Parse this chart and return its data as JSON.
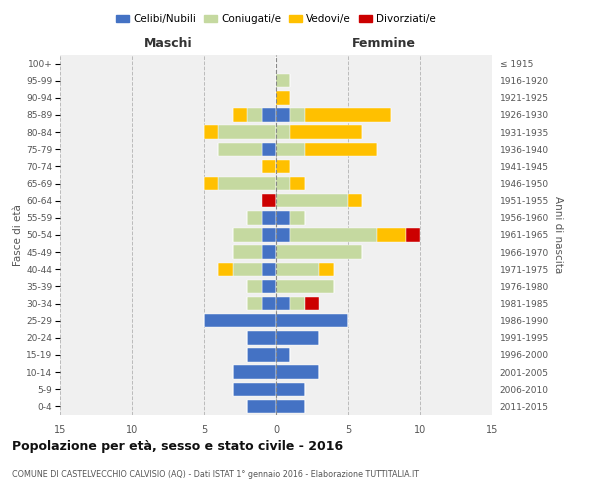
{
  "age_groups": [
    "0-4",
    "5-9",
    "10-14",
    "15-19",
    "20-24",
    "25-29",
    "30-34",
    "35-39",
    "40-44",
    "45-49",
    "50-54",
    "55-59",
    "60-64",
    "65-69",
    "70-74",
    "75-79",
    "80-84",
    "85-89",
    "90-94",
    "95-99",
    "100+"
  ],
  "birth_years": [
    "2011-2015",
    "2006-2010",
    "2001-2005",
    "1996-2000",
    "1991-1995",
    "1986-1990",
    "1981-1985",
    "1976-1980",
    "1971-1975",
    "1966-1970",
    "1961-1965",
    "1956-1960",
    "1951-1955",
    "1946-1950",
    "1941-1945",
    "1936-1940",
    "1931-1935",
    "1926-1930",
    "1921-1925",
    "1916-1920",
    "≤ 1915"
  ],
  "males": {
    "celibi": [
      2,
      3,
      3,
      2,
      2,
      5,
      1,
      1,
      1,
      1,
      1,
      1,
      0,
      0,
      0,
      1,
      0,
      1,
      0,
      0,
      0
    ],
    "coniugati": [
      0,
      0,
      0,
      0,
      0,
      0,
      1,
      1,
      2,
      2,
      2,
      1,
      0,
      4,
      0,
      3,
      4,
      1,
      0,
      0,
      0
    ],
    "vedovi": [
      0,
      0,
      0,
      0,
      0,
      0,
      0,
      0,
      1,
      0,
      0,
      0,
      0,
      1,
      1,
      0,
      1,
      1,
      0,
      0,
      0
    ],
    "divorziati": [
      0,
      0,
      0,
      0,
      0,
      0,
      0,
      0,
      0,
      0,
      0,
      0,
      1,
      0,
      0,
      0,
      0,
      0,
      0,
      0,
      0
    ]
  },
  "females": {
    "nubili": [
      2,
      2,
      3,
      1,
      3,
      5,
      1,
      0,
      0,
      0,
      1,
      1,
      0,
      0,
      0,
      0,
      0,
      1,
      0,
      0,
      0
    ],
    "coniugate": [
      0,
      0,
      0,
      0,
      0,
      0,
      1,
      4,
      3,
      6,
      6,
      1,
      5,
      1,
      0,
      2,
      1,
      1,
      0,
      1,
      0
    ],
    "vedove": [
      0,
      0,
      0,
      0,
      0,
      0,
      0,
      0,
      1,
      0,
      2,
      0,
      1,
      1,
      1,
      5,
      5,
      6,
      1,
      0,
      0
    ],
    "divorziate": [
      0,
      0,
      0,
      0,
      0,
      0,
      1,
      0,
      0,
      0,
      1,
      0,
      0,
      0,
      0,
      0,
      0,
      0,
      0,
      0,
      0
    ]
  },
  "color_celibi": "#4472c4",
  "color_coniugati": "#c5d9a0",
  "color_vedovi": "#ffc000",
  "color_divorziati": "#cc0000",
  "title_bold": "Popolazione per età, sesso e stato civile - 2016",
  "subtitle": "COMUNE DI CASTELVECCHIO CALVISIO (AQ) - Dati ISTAT 1° gennaio 2016 - Elaborazione TUTTITALIA.IT",
  "xlabel_maschi": "Maschi",
  "xlabel_femmine": "Femmine",
  "ylabel_left": "Fasce di età",
  "ylabel_right": "Anni di nascita",
  "xlim": 15,
  "legend_labels": [
    "Celibi/Nubili",
    "Coniugati/e",
    "Vedovi/e",
    "Divorziati/e"
  ],
  "bg_color": "#ffffff",
  "plot_bg": "#f0f0f0"
}
